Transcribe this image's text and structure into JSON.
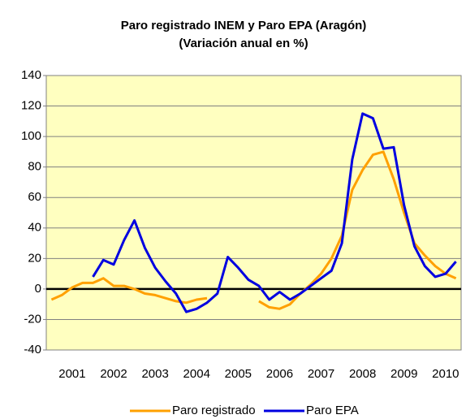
{
  "chart_data": {
    "type": "line",
    "title": "Paro registrado INEM y Paro EPA (Aragón)",
    "subtitle": "(Variación anual en %)",
    "categories": [
      null,
      null,
      "2001",
      null,
      null,
      null,
      "2002",
      null,
      null,
      null,
      "2003",
      null,
      null,
      null,
      "2004",
      null,
      null,
      null,
      "2005",
      null,
      null,
      null,
      "2006",
      null,
      null,
      null,
      "2007",
      null,
      null,
      null,
      "2008",
      null,
      null,
      null,
      "2009",
      null,
      null,
      null,
      "2010",
      null
    ],
    "series": [
      {
        "name": "Paro registrado",
        "color": "#ffa000",
        "values": [
          -7,
          -4,
          1,
          4,
          4,
          7,
          2,
          2,
          0,
          -3,
          -4,
          -6,
          -8,
          -9,
          -7,
          -6,
          null,
          null,
          null,
          null,
          -8,
          -12,
          -13,
          -10,
          -3,
          3,
          10,
          20,
          35,
          65,
          78,
          88,
          90,
          72,
          50,
          30,
          22,
          15,
          10,
          7
        ]
      },
      {
        "name": "Paro EPA",
        "color": "#0000e0",
        "values": [
          null,
          null,
          null,
          null,
          8,
          19,
          16,
          32,
          45,
          27,
          14,
          5,
          -3,
          -15,
          -13,
          -9,
          -3,
          21,
          14,
          6,
          2,
          -7,
          -2,
          -7,
          -3,
          2,
          7,
          12,
          30,
          85,
          115,
          112,
          92,
          93,
          55,
          28,
          15,
          8,
          10,
          18
        ]
      }
    ],
    "ylim": [
      -40,
      140
    ],
    "yticks": [
      -40,
      -20,
      0,
      20,
      40,
      60,
      80,
      100,
      120,
      140
    ],
    "grid": true,
    "legend": "bottom",
    "background": "#ffffc0"
  }
}
